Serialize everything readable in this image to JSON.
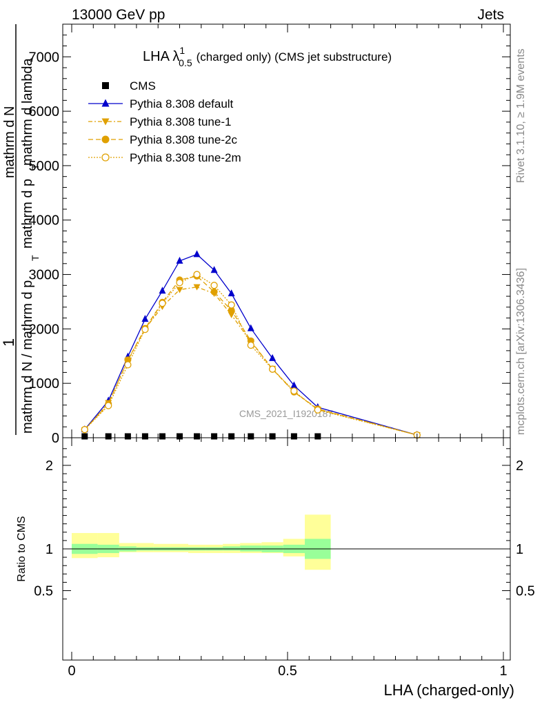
{
  "header": {
    "left": "13000 GeV pp",
    "right": "Jets"
  },
  "side_text": {
    "top": "Rivet 3.1.10, ≥ 1.9M events",
    "bottom": "mcplots.cern.ch [arXiv:1306.3436]"
  },
  "watermark": "CMS_2021_I1920187",
  "chart_data": [
    {
      "type": "line",
      "title_main": "LHA λ",
      "title_sup": "1",
      "title_sub": "0.5",
      "title_rest": "(charged only) (CMS jet substructure)",
      "ylabel_parts": [
        "1",
        "mathrm d N / mathrm d p",
        "T",
        "mathrm d N",
        "mathrm d p",
        "T",
        "mathrm d lambda"
      ],
      "xlim": [
        0,
        1
      ],
      "ylim": [
        0,
        7600
      ],
      "y_ticks": [
        0,
        1000,
        2000,
        3000,
        4000,
        5000,
        6000,
        7000
      ],
      "y_tick_labels": [
        "0",
        "1000",
        "2000",
        "3000",
        "4000",
        "5000",
        "6000",
        "7000"
      ],
      "legend_position": "top-left",
      "series": [
        {
          "name": "CMS",
          "color": "#000000",
          "marker": "square",
          "x": [
            0.03,
            0.085,
            0.13,
            0.17,
            0.21,
            0.25,
            0.29,
            0.33,
            0.37,
            0.415,
            0.465,
            0.515,
            0.57
          ],
          "y": [
            5,
            5,
            5,
            5,
            5,
            5,
            5,
            5,
            5,
            5,
            5,
            5,
            5
          ]
        },
        {
          "name": "Pythia 8.308 default",
          "color": "#0000cc",
          "marker": "triangle-up",
          "x": [
            0.03,
            0.085,
            0.13,
            0.17,
            0.21,
            0.25,
            0.29,
            0.33,
            0.37,
            0.415,
            0.465,
            0.515,
            0.57,
            0.8
          ],
          "y": [
            150,
            680,
            1490,
            2180,
            2700,
            3250,
            3370,
            3080,
            2650,
            2010,
            1460,
            960,
            560,
            50
          ]
        },
        {
          "name": "Pythia 8.308 tune-1",
          "color": "#e0a000",
          "marker": "triangle-down",
          "x": [
            0.03,
            0.085,
            0.13,
            0.17,
            0.21,
            0.25,
            0.29,
            0.33,
            0.37,
            0.415,
            0.465,
            0.515,
            0.57,
            0.8
          ],
          "y": [
            140,
            640,
            1420,
            2000,
            2410,
            2720,
            2770,
            2650,
            2260,
            1760,
            1270,
            840,
            520,
            50
          ]
        },
        {
          "name": "Pythia 8.308 tune-2c",
          "color": "#e0a000",
          "marker": "circle",
          "x": [
            0.03,
            0.085,
            0.13,
            0.17,
            0.21,
            0.25,
            0.29,
            0.33,
            0.37,
            0.415,
            0.465,
            0.515,
            0.57,
            0.8
          ],
          "y": [
            150,
            620,
            1430,
            2010,
            2490,
            2900,
            2970,
            2680,
            2340,
            1780,
            1260,
            840,
            530,
            50
          ]
        },
        {
          "name": "Pythia 8.308 tune-2m",
          "color": "#e0a000",
          "marker": "circle-open",
          "x": [
            0.03,
            0.085,
            0.13,
            0.17,
            0.21,
            0.25,
            0.29,
            0.33,
            0.37,
            0.415,
            0.465,
            0.515,
            0.57,
            0.8
          ],
          "y": [
            150,
            590,
            1340,
            1990,
            2470,
            2850,
            3000,
            2800,
            2440,
            1700,
            1260,
            860,
            510,
            50
          ]
        }
      ]
    },
    {
      "type": "area",
      "ylabel": "Ratio to CMS",
      "xlabel": "LHA (charged-only)",
      "xlim": [
        0,
        1
      ],
      "ylim": [
        0.35,
        2.3
      ],
      "y_ticks": [
        0.5,
        1,
        2
      ],
      "y_tick_labels": [
        "0.5",
        "1",
        "2"
      ],
      "x_ticks": [
        0,
        0.5,
        1
      ],
      "x_tick_labels": [
        "0",
        "0.5",
        "1"
      ],
      "reference_line": 1,
      "bands": {
        "edges": [
          0,
          0.06,
          0.11,
          0.15,
          0.19,
          0.23,
          0.27,
          0.31,
          0.35,
          0.39,
          0.44,
          0.49,
          0.54,
          0.6,
          1.0
        ],
        "inner_low": [
          0.94,
          0.95,
          0.97,
          0.98,
          0.98,
          0.98,
          0.98,
          0.98,
          0.98,
          0.97,
          0.96,
          0.95,
          0.88
        ],
        "inner_high": [
          1.06,
          1.05,
          1.03,
          1.02,
          1.02,
          1.02,
          1.02,
          1.02,
          1.03,
          1.04,
          1.04,
          1.05,
          1.12
        ],
        "outer_low": [
          0.89,
          0.9,
          0.96,
          0.96,
          0.96,
          0.96,
          0.95,
          0.95,
          0.95,
          0.95,
          0.95,
          0.91,
          0.75
        ],
        "outer_high": [
          1.19,
          1.19,
          1.07,
          1.07,
          1.06,
          1.06,
          1.05,
          1.05,
          1.06,
          1.07,
          1.08,
          1.12,
          1.41
        ],
        "inner_color": "#99ff99",
        "outer_color": "#ffff99"
      }
    }
  ]
}
